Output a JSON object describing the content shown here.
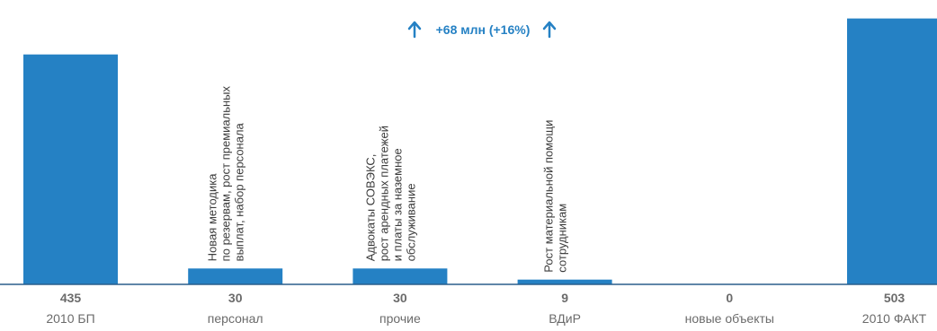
{
  "chart_data": {
    "type": "bar",
    "categories": [
      "2010 БП",
      "персонал",
      "прочие",
      "ВДиР",
      "новые объекты",
      "2010 ФАКТ"
    ],
    "values": [
      435,
      30,
      30,
      9,
      0,
      503
    ],
    "value_labels": [
      "435",
      "30",
      "30",
      "9",
      "0",
      "503"
    ],
    "annotations": [
      "",
      "Новая методика\nпо резервам, рост премиальных\nвыплат, набор персонала",
      "Адвокаты СОВЭКС,\nрост арендных платежей\nи платы за наземное\nобслуживание",
      "Рост материальной помощи\nсотрудникам",
      "",
      ""
    ],
    "headline": "+68 млн (+16%)",
    "headline_icon": "arrow-up-icon",
    "colors": {
      "bar": "#2581c4",
      "text": "#6b6b6b",
      "note": "#3a3a3a",
      "accent": "#2581c4"
    },
    "title": "",
    "xlabel": "",
    "ylabel": "",
    "ylim": [
      0,
      510
    ],
    "grid": false,
    "legend": "none"
  }
}
